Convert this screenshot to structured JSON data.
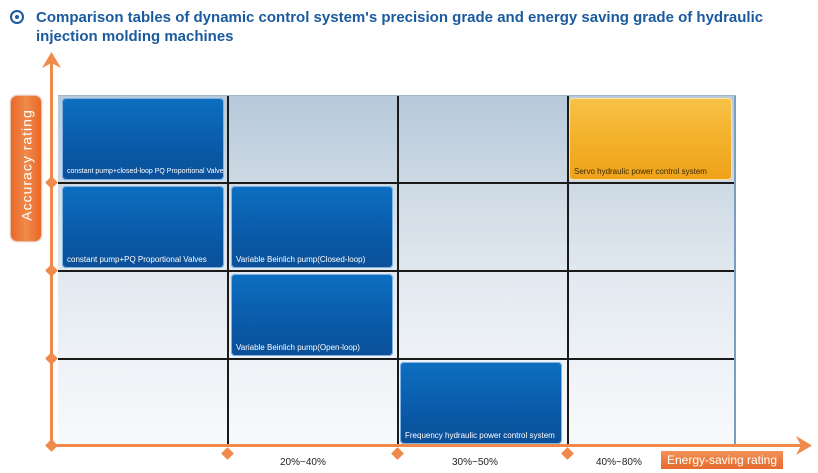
{
  "title": "Comparison tables of dynamic control system's precision grade and energy saving grade of hydraulic injection molding machines",
  "y_axis_label": "Accuracy rating",
  "x_axis_label": "Energy-saving rating",
  "x_ticks": [
    "20%~40%",
    "30%~50%",
    "40%~80%"
  ],
  "boxes": [
    {
      "label": "constant pump+closed-loop PQ Proportional Valves"
    },
    {
      "label": "Servo hydraulic power control system"
    },
    {
      "label": "constant pump+PQ Proportional Valves"
    },
    {
      "label": "Variable Beinlich pump(Closed-loop)"
    },
    {
      "label": "Variable Beinlich pump(Open-loop)"
    },
    {
      "label": "Frequency hydraulic power control system"
    }
  ],
  "colors": {
    "title": "#1a5a9e",
    "axis": "#f08a4b",
    "box_blue": "#0a5fae",
    "box_gold": "#f3b12a"
  }
}
